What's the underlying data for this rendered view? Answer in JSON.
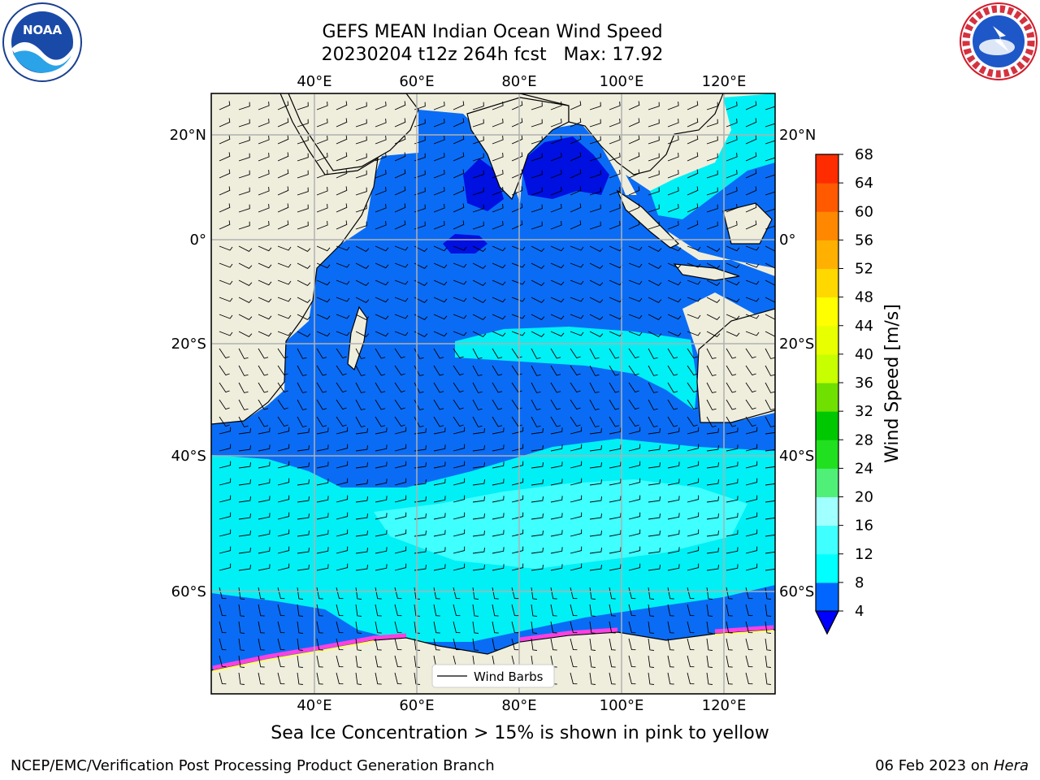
{
  "title": {
    "line1": "GEFS MEAN Indian Ocean Wind Speed",
    "line2": "20230204 t12z 264h fcst   Max: 17.92"
  },
  "map": {
    "lon_ticks": [
      "40°E",
      "60°E",
      "80°E",
      "100°E",
      "120°E"
    ],
    "lat_ticks": [
      "20°N",
      "0°",
      "20°S",
      "40°S",
      "60°S"
    ],
    "legend_label": "Wind Barbs",
    "land_color": "#efeedd",
    "ocean_colors": {
      "band_4_8": "#0a6cf5",
      "band_8_12": "#00f0f5",
      "band_12_16": "#40ffff",
      "band_0_4": "#0010e0"
    }
  },
  "colorbar": {
    "label": "Wind Speed [m/s]",
    "ticks": [
      "4",
      "8",
      "12",
      "16",
      "20",
      "24",
      "28",
      "32",
      "36",
      "40",
      "44",
      "48",
      "52",
      "56",
      "60",
      "64",
      "68"
    ],
    "colors": [
      "#0066ff",
      "#00ffff",
      "#40ffff",
      "#a0ffff",
      "#50f078",
      "#20e020",
      "#00c800",
      "#70e000",
      "#c8ff00",
      "#e8ff00",
      "#ffff00",
      "#ffd800",
      "#ffb000",
      "#ff8800",
      "#ff5a00",
      "#ff2c00",
      "#ff0000"
    ],
    "under_color": "#0000ff"
  },
  "caption": "Sea Ice Concentration > 15% is shown in pink to yellow",
  "footer": {
    "left": "NCEP/EMC/Verification Post Processing Product Generation Branch",
    "date": "06 Feb 2023 on ",
    "host": "Hera"
  },
  "logos": {
    "left": {
      "icon": "noaa-logo",
      "text": "NOAA"
    },
    "right": {
      "icon": "nws-logo",
      "text": "NATIONAL WEATHER SERVICE"
    }
  }
}
